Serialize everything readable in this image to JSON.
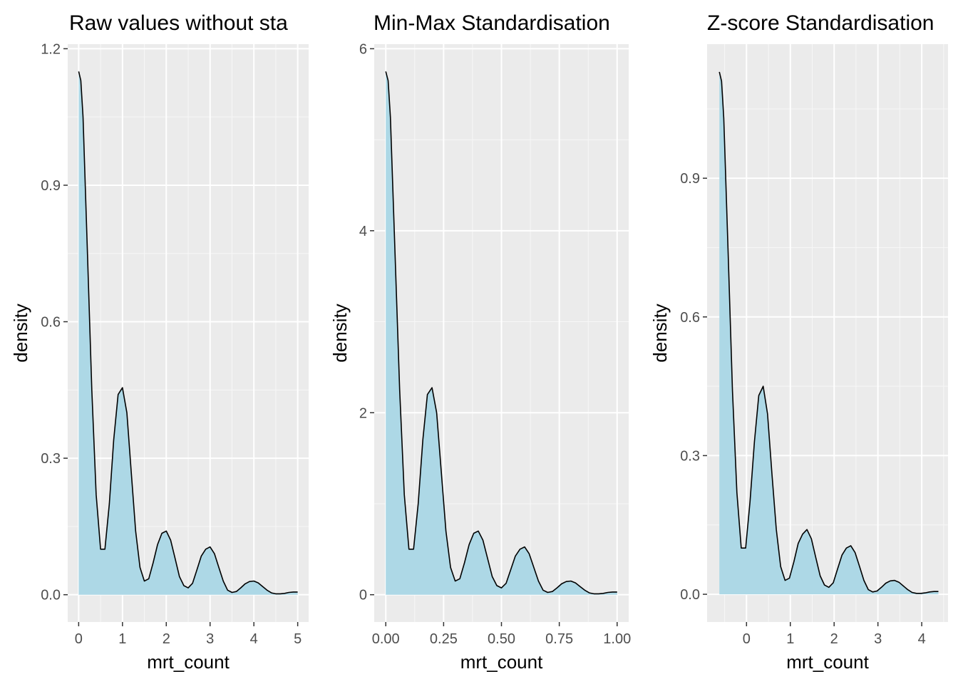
{
  "chart_data": [
    {
      "type": "area",
      "title": "Raw values without sta",
      "xlabel": "mrt_count",
      "ylabel": "density",
      "xlim": [
        -0.25,
        5.25
      ],
      "ylim": [
        -0.06,
        1.21
      ],
      "xticks": [
        0,
        1,
        2,
        3,
        4,
        5
      ],
      "xtick_labels": [
        "0",
        "1",
        "2",
        "3",
        "4",
        "5"
      ],
      "yticks": [
        0.0,
        0.3,
        0.6,
        0.9,
        1.2
      ],
      "ytick_labels": [
        "0.0",
        "0.3",
        "0.6",
        "0.9",
        "1.2"
      ],
      "fill_color": "#add8e6",
      "line_color": "#000000",
      "grid": true,
      "x": [
        0,
        0.05,
        0.1,
        0.2,
        0.3,
        0.4,
        0.5,
        0.6,
        0.7,
        0.8,
        0.9,
        1.0,
        1.1,
        1.2,
        1.3,
        1.4,
        1.5,
        1.6,
        1.7,
        1.8,
        1.9,
        2.0,
        2.1,
        2.2,
        2.3,
        2.4,
        2.5,
        2.6,
        2.7,
        2.8,
        2.9,
        3.0,
        3.1,
        3.2,
        3.3,
        3.4,
        3.5,
        3.6,
        3.7,
        3.8,
        3.9,
        4.0,
        4.1,
        4.2,
        4.3,
        4.4,
        4.5,
        4.6,
        4.7,
        4.8,
        4.9,
        5.0
      ],
      "y": [
        1.15,
        1.13,
        1.05,
        0.75,
        0.45,
        0.22,
        0.1,
        0.1,
        0.2,
        0.34,
        0.44,
        0.455,
        0.4,
        0.27,
        0.14,
        0.06,
        0.03,
        0.035,
        0.07,
        0.11,
        0.135,
        0.14,
        0.12,
        0.08,
        0.04,
        0.02,
        0.015,
        0.025,
        0.055,
        0.085,
        0.1,
        0.105,
        0.09,
        0.06,
        0.03,
        0.01,
        0.005,
        0.007,
        0.015,
        0.024,
        0.029,
        0.03,
        0.026,
        0.018,
        0.01,
        0.004,
        0.002,
        0.002,
        0.003,
        0.005,
        0.006,
        0.006
      ]
    },
    {
      "type": "area",
      "title": "Min-Max Standardisation",
      "xlabel": "mrt_count",
      "ylabel": "density",
      "xlim": [
        -0.05,
        1.05
      ],
      "ylim": [
        -0.3,
        6.05
      ],
      "xticks": [
        0,
        0.25,
        0.5,
        0.75,
        1.0
      ],
      "xtick_labels": [
        "0.00",
        "0.25",
        "0.50",
        "0.75",
        "1.00"
      ],
      "yticks": [
        0,
        2,
        4,
        6
      ],
      "ytick_labels": [
        "0",
        "2",
        "4",
        "6"
      ],
      "fill_color": "#add8e6",
      "line_color": "#000000",
      "grid": true,
      "x": [
        0,
        0.01,
        0.02,
        0.04,
        0.06,
        0.08,
        0.1,
        0.12,
        0.14,
        0.16,
        0.18,
        0.2,
        0.22,
        0.24,
        0.26,
        0.28,
        0.3,
        0.32,
        0.34,
        0.36,
        0.38,
        0.4,
        0.42,
        0.44,
        0.46,
        0.48,
        0.5,
        0.52,
        0.54,
        0.56,
        0.58,
        0.6,
        0.62,
        0.64,
        0.66,
        0.68,
        0.7,
        0.72,
        0.74,
        0.76,
        0.78,
        0.8,
        0.82,
        0.84,
        0.86,
        0.88,
        0.9,
        0.92,
        0.94,
        0.96,
        0.98,
        1.0
      ],
      "y": [
        5.75,
        5.65,
        5.25,
        3.75,
        2.25,
        1.1,
        0.5,
        0.5,
        1.0,
        1.7,
        2.2,
        2.275,
        2.0,
        1.35,
        0.7,
        0.3,
        0.15,
        0.175,
        0.35,
        0.55,
        0.675,
        0.7,
        0.6,
        0.4,
        0.2,
        0.1,
        0.075,
        0.125,
        0.275,
        0.425,
        0.5,
        0.525,
        0.45,
        0.3,
        0.15,
        0.05,
        0.025,
        0.035,
        0.075,
        0.12,
        0.145,
        0.15,
        0.13,
        0.09,
        0.05,
        0.02,
        0.01,
        0.01,
        0.015,
        0.025,
        0.03,
        0.03
      ]
    },
    {
      "type": "area",
      "title": "Z-score Standardisation",
      "xlabel": "mrt_count",
      "ylabel": "density",
      "xlim": [
        -0.9,
        4.6
      ],
      "ylim": [
        -0.06,
        1.19
      ],
      "xticks": [
        0,
        1,
        2,
        3,
        4
      ],
      "xtick_labels": [
        "0",
        "1",
        "2",
        "3",
        "4"
      ],
      "yticks": [
        0.0,
        0.3,
        0.6,
        0.9
      ],
      "ytick_labels": [
        "0.0",
        "0.3",
        "0.6",
        "0.9"
      ],
      "fill_color": "#add8e6",
      "line_color": "#000000",
      "grid": true,
      "x": [
        -0.62,
        -0.57,
        -0.52,
        -0.42,
        -0.32,
        -0.22,
        -0.12,
        -0.02,
        0.08,
        0.18,
        0.28,
        0.38,
        0.48,
        0.58,
        0.68,
        0.78,
        0.88,
        0.98,
        1.08,
        1.18,
        1.28,
        1.38,
        1.48,
        1.58,
        1.68,
        1.78,
        1.88,
        1.98,
        2.08,
        2.18,
        2.28,
        2.38,
        2.48,
        2.58,
        2.68,
        2.78,
        2.88,
        2.98,
        3.08,
        3.18,
        3.28,
        3.38,
        3.48,
        3.58,
        3.68,
        3.78,
        3.88,
        3.98,
        4.08,
        4.18,
        4.28,
        4.38
      ],
      "y": [
        1.13,
        1.11,
        1.03,
        0.74,
        0.44,
        0.22,
        0.1,
        0.1,
        0.2,
        0.33,
        0.43,
        0.45,
        0.39,
        0.26,
        0.14,
        0.06,
        0.03,
        0.035,
        0.07,
        0.11,
        0.13,
        0.14,
        0.12,
        0.08,
        0.04,
        0.02,
        0.015,
        0.025,
        0.055,
        0.085,
        0.1,
        0.105,
        0.09,
        0.06,
        0.03,
        0.01,
        0.005,
        0.007,
        0.015,
        0.024,
        0.029,
        0.03,
        0.026,
        0.018,
        0.01,
        0.004,
        0.002,
        0.002,
        0.003,
        0.005,
        0.006,
        0.006
      ]
    }
  ]
}
